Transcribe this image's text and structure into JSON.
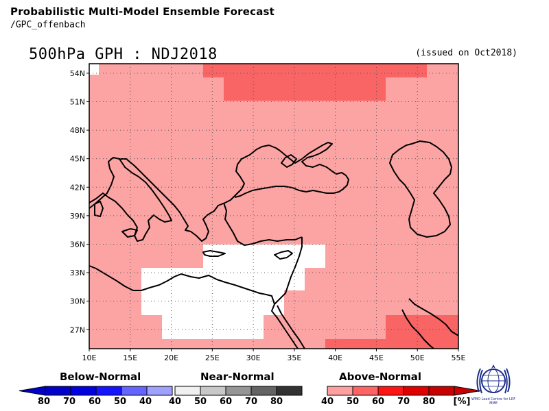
{
  "header": {
    "title": "Probabilistic Multi-Model Ensemble Forecast",
    "subtitle": "/GPC_offenbach",
    "map_title": "500hPa GPH : NDJ2018",
    "issued": "(issued on Oct2018)"
  },
  "map": {
    "lon_range": [
      10,
      55
    ],
    "lat_range": [
      25,
      55
    ],
    "lat_labels": [
      "54N",
      "51N",
      "48N",
      "45N",
      "42N",
      "39N",
      "36N",
      "33N",
      "30N",
      "27N"
    ],
    "lon_labels": [
      "10E",
      "15E",
      "20E",
      "25E",
      "30E",
      "35E",
      "40E",
      "45E",
      "50E",
      "55E"
    ],
    "gridlines": true,
    "colors": {
      "above_40": "#fca3a3",
      "above_50": "#f96464",
      "near_normal": "#ffffff"
    }
  },
  "legend": {
    "below": {
      "title": "Below-Normal",
      "numbers": [
        "80",
        "70",
        "60",
        "50",
        "40"
      ],
      "colors": [
        "#0000c8",
        "#0000e0",
        "#1414ff",
        "#6464ff",
        "#a0a0ff"
      ]
    },
    "near": {
      "title": "Near-Normal",
      "numbers": [
        "40",
        "50",
        "60",
        "70",
        "80"
      ],
      "colors": [
        "#f0f0f0",
        "#c8c8c8",
        "#969696",
        "#646464",
        "#323232"
      ]
    },
    "above": {
      "title": "Above-Normal",
      "numbers": [
        "40",
        "50",
        "60",
        "70",
        "80"
      ],
      "colors": [
        "#ffa0a0",
        "#ff6464",
        "#ff1414",
        "#e00000",
        "#c80000"
      ],
      "unit": "[%]"
    }
  },
  "logo": {
    "text": "WMO Lead Centre for LRF MME",
    "icon": "wmo-emblem-icon"
  }
}
